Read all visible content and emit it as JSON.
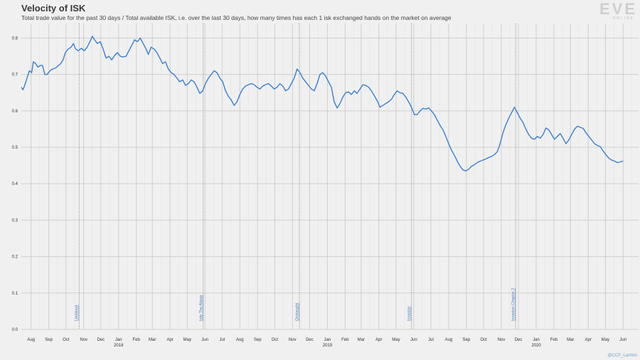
{
  "chart_data": {
    "type": "line",
    "title": "Velocity of ISK",
    "subtitle": "Total trade value for the past 30 days / Total available ISK, i.e. over the last 30 days, how many times has each 1 isk exchanged hands on the market on average",
    "ylim": [
      0,
      0.84
    ],
    "y_ticks": [
      "0.0",
      "0.1",
      "0.2",
      "0.3",
      "0.4",
      "0.5",
      "0.6",
      "0.7",
      "0.8"
    ],
    "x_range": [
      "2017-07-15",
      "2020-06-28"
    ],
    "x_ticks": [
      {
        "label": "Aug",
        "date": "2017-08-01"
      },
      {
        "label": "Sep",
        "date": "2017-09-01"
      },
      {
        "label": "Oct",
        "date": "2017-10-01"
      },
      {
        "label": "Nov",
        "date": "2017-11-01"
      },
      {
        "label": "Dec",
        "date": "2017-12-01"
      },
      {
        "label": "Jan",
        "date": "2018-01-01",
        "year": "2018"
      },
      {
        "label": "Feb",
        "date": "2018-02-01"
      },
      {
        "label": "Mar",
        "date": "2018-03-01"
      },
      {
        "label": "Apr",
        "date": "2018-04-01"
      },
      {
        "label": "May",
        "date": "2018-05-01"
      },
      {
        "label": "Jun",
        "date": "2018-06-01"
      },
      {
        "label": "Jul",
        "date": "2018-07-01"
      },
      {
        "label": "Aug",
        "date": "2018-08-01"
      },
      {
        "label": "Sep",
        "date": "2018-09-01"
      },
      {
        "label": "Oct",
        "date": "2018-10-01"
      },
      {
        "label": "Nov",
        "date": "2018-11-01"
      },
      {
        "label": "Dec",
        "date": "2018-12-01"
      },
      {
        "label": "Jan",
        "date": "2019-01-01",
        "year": "2019"
      },
      {
        "label": "Feb",
        "date": "2019-02-01"
      },
      {
        "label": "Mar",
        "date": "2019-03-01"
      },
      {
        "label": "Apr",
        "date": "2019-04-01"
      },
      {
        "label": "May",
        "date": "2019-05-01"
      },
      {
        "label": "Jun",
        "date": "2019-06-01"
      },
      {
        "label": "Jul",
        "date": "2019-07-01"
      },
      {
        "label": "Aug",
        "date": "2019-08-01"
      },
      {
        "label": "Sep",
        "date": "2019-09-01"
      },
      {
        "label": "Oct",
        "date": "2019-10-01"
      },
      {
        "label": "Nov",
        "date": "2019-11-01"
      },
      {
        "label": "Dec",
        "date": "2019-12-01"
      },
      {
        "label": "Jan",
        "date": "2020-01-01",
        "year": "2020"
      },
      {
        "label": "Feb",
        "date": "2020-02-01"
      },
      {
        "label": "Mar",
        "date": "2020-03-01"
      },
      {
        "label": "Apr",
        "date": "2020-04-01"
      },
      {
        "label": "May",
        "date": "2020-05-01"
      },
      {
        "label": "Jun",
        "date": "2020-06-01"
      }
    ],
    "events": [
      {
        "label": "Lifeblood",
        "date": "2017-10-24"
      },
      {
        "label": "Into The Abyss",
        "date": "2018-05-29"
      },
      {
        "label": "Onslaught",
        "date": "2018-11-13"
      },
      {
        "label": "Invasion",
        "date": "2019-05-28"
      },
      {
        "label": "Invasion Chapter 2",
        "date": "2019-11-26"
      }
    ],
    "series": [
      {
        "color": "#3a7fce",
        "points": [
          [
            "2017-07-15",
            0.665
          ],
          [
            "2017-07-18",
            0.658
          ],
          [
            "2017-07-22",
            0.675
          ],
          [
            "2017-07-26",
            0.695
          ],
          [
            "2017-07-29",
            0.71
          ],
          [
            "2017-08-02",
            0.705
          ],
          [
            "2017-08-05",
            0.735
          ],
          [
            "2017-08-09",
            0.73
          ],
          [
            "2017-08-13",
            0.72
          ],
          [
            "2017-08-17",
            0.725
          ],
          [
            "2017-08-21",
            0.725
          ],
          [
            "2017-08-25",
            0.7
          ],
          [
            "2017-08-29",
            0.7
          ],
          [
            "2017-09-03",
            0.71
          ],
          [
            "2017-09-08",
            0.715
          ],
          [
            "2017-09-13",
            0.718
          ],
          [
            "2017-09-18",
            0.725
          ],
          [
            "2017-09-22",
            0.73
          ],
          [
            "2017-09-26",
            0.74
          ],
          [
            "2017-09-30",
            0.76
          ],
          [
            "2017-10-05",
            0.77
          ],
          [
            "2017-10-10",
            0.775
          ],
          [
            "2017-10-14",
            0.785
          ],
          [
            "2017-10-18",
            0.77
          ],
          [
            "2017-10-23",
            0.765
          ],
          [
            "2017-10-28",
            0.772
          ],
          [
            "2017-11-02",
            0.765
          ],
          [
            "2017-11-07",
            0.775
          ],
          [
            "2017-11-12",
            0.79
          ],
          [
            "2017-11-16",
            0.805
          ],
          [
            "2017-11-20",
            0.795
          ],
          [
            "2017-11-25",
            0.785
          ],
          [
            "2017-11-30",
            0.79
          ],
          [
            "2017-12-05",
            0.77
          ],
          [
            "2017-12-10",
            0.745
          ],
          [
            "2017-12-15",
            0.75
          ],
          [
            "2017-12-20",
            0.74
          ],
          [
            "2017-12-25",
            0.752
          ],
          [
            "2017-12-30",
            0.76
          ],
          [
            "2018-01-04",
            0.75
          ],
          [
            "2018-01-09",
            0.748
          ],
          [
            "2018-01-14",
            0.75
          ],
          [
            "2018-01-19",
            0.765
          ],
          [
            "2018-01-24",
            0.78
          ],
          [
            "2018-01-29",
            0.795
          ],
          [
            "2018-02-03",
            0.79
          ],
          [
            "2018-02-08",
            0.8
          ],
          [
            "2018-02-13",
            0.785
          ],
          [
            "2018-02-18",
            0.77
          ],
          [
            "2018-02-22",
            0.755
          ],
          [
            "2018-02-27",
            0.775
          ],
          [
            "2018-03-04",
            0.77
          ],
          [
            "2018-03-09",
            0.76
          ],
          [
            "2018-03-14",
            0.745
          ],
          [
            "2018-03-19",
            0.73
          ],
          [
            "2018-03-24",
            0.735
          ],
          [
            "2018-03-29",
            0.715
          ],
          [
            "2018-04-03",
            0.705
          ],
          [
            "2018-04-08",
            0.7
          ],
          [
            "2018-04-13",
            0.69
          ],
          [
            "2018-04-18",
            0.68
          ],
          [
            "2018-04-23",
            0.685
          ],
          [
            "2018-04-28",
            0.67
          ],
          [
            "2018-05-03",
            0.675
          ],
          [
            "2018-05-08",
            0.685
          ],
          [
            "2018-05-13",
            0.68
          ],
          [
            "2018-05-18",
            0.665
          ],
          [
            "2018-05-23",
            0.648
          ],
          [
            "2018-05-28",
            0.655
          ],
          [
            "2018-06-02",
            0.675
          ],
          [
            "2018-06-07",
            0.69
          ],
          [
            "2018-06-12",
            0.7
          ],
          [
            "2018-06-17",
            0.71
          ],
          [
            "2018-06-22",
            0.705
          ],
          [
            "2018-06-27",
            0.69
          ],
          [
            "2018-07-02",
            0.68
          ],
          [
            "2018-07-07",
            0.655
          ],
          [
            "2018-07-12",
            0.64
          ],
          [
            "2018-07-17",
            0.63
          ],
          [
            "2018-07-22",
            0.615
          ],
          [
            "2018-07-27",
            0.625
          ],
          [
            "2018-08-01",
            0.645
          ],
          [
            "2018-08-06",
            0.66
          ],
          [
            "2018-08-11",
            0.668
          ],
          [
            "2018-08-16",
            0.672
          ],
          [
            "2018-08-21",
            0.675
          ],
          [
            "2018-08-26",
            0.672
          ],
          [
            "2018-08-31",
            0.665
          ],
          [
            "2018-09-05",
            0.66
          ],
          [
            "2018-09-10",
            0.668
          ],
          [
            "2018-09-15",
            0.672
          ],
          [
            "2018-09-20",
            0.675
          ],
          [
            "2018-09-25",
            0.668
          ],
          [
            "2018-09-30",
            0.66
          ],
          [
            "2018-10-05",
            0.665
          ],
          [
            "2018-10-10",
            0.675
          ],
          [
            "2018-10-15",
            0.668
          ],
          [
            "2018-10-20",
            0.655
          ],
          [
            "2018-10-25",
            0.66
          ],
          [
            "2018-10-30",
            0.675
          ],
          [
            "2018-11-04",
            0.69
          ],
          [
            "2018-11-09",
            0.715
          ],
          [
            "2018-11-14",
            0.705
          ],
          [
            "2018-11-19",
            0.69
          ],
          [
            "2018-11-24",
            0.68
          ],
          [
            "2018-11-29",
            0.67
          ],
          [
            "2018-12-04",
            0.66
          ],
          [
            "2018-12-09",
            0.655
          ],
          [
            "2018-12-14",
            0.675
          ],
          [
            "2018-12-19",
            0.7
          ],
          [
            "2018-12-24",
            0.705
          ],
          [
            "2018-12-29",
            0.695
          ],
          [
            "2019-01-03",
            0.68
          ],
          [
            "2019-01-08",
            0.665
          ],
          [
            "2019-01-13",
            0.625
          ],
          [
            "2019-01-18",
            0.608
          ],
          [
            "2019-01-23",
            0.62
          ],
          [
            "2019-01-28",
            0.638
          ],
          [
            "2019-02-02",
            0.65
          ],
          [
            "2019-02-07",
            0.652
          ],
          [
            "2019-02-12",
            0.645
          ],
          [
            "2019-02-17",
            0.655
          ],
          [
            "2019-02-22",
            0.648
          ],
          [
            "2019-02-27",
            0.66
          ],
          [
            "2019-03-04",
            0.672
          ],
          [
            "2019-03-09",
            0.67
          ],
          [
            "2019-03-14",
            0.665
          ],
          [
            "2019-03-19",
            0.655
          ],
          [
            "2019-03-24",
            0.642
          ],
          [
            "2019-03-29",
            0.628
          ],
          [
            "2019-04-03",
            0.61
          ],
          [
            "2019-04-08",
            0.615
          ],
          [
            "2019-04-13",
            0.62
          ],
          [
            "2019-04-18",
            0.625
          ],
          [
            "2019-04-23",
            0.632
          ],
          [
            "2019-04-28",
            0.645
          ],
          [
            "2019-05-03",
            0.655
          ],
          [
            "2019-05-08",
            0.65
          ],
          [
            "2019-05-13",
            0.648
          ],
          [
            "2019-05-18",
            0.638
          ],
          [
            "2019-05-23",
            0.625
          ],
          [
            "2019-05-28",
            0.61
          ],
          [
            "2019-06-02",
            0.59
          ],
          [
            "2019-06-07",
            0.59
          ],
          [
            "2019-06-12",
            0.6
          ],
          [
            "2019-06-17",
            0.607
          ],
          [
            "2019-06-22",
            0.605
          ],
          [
            "2019-06-27",
            0.608
          ],
          [
            "2019-07-02",
            0.6
          ],
          [
            "2019-07-07",
            0.59
          ],
          [
            "2019-07-12",
            0.575
          ],
          [
            "2019-07-17",
            0.56
          ],
          [
            "2019-07-22",
            0.548
          ],
          [
            "2019-07-27",
            0.53
          ],
          [
            "2019-08-01",
            0.51
          ],
          [
            "2019-08-06",
            0.492
          ],
          [
            "2019-08-11",
            0.478
          ],
          [
            "2019-08-16",
            0.462
          ],
          [
            "2019-08-21",
            0.448
          ],
          [
            "2019-08-26",
            0.438
          ],
          [
            "2019-08-31",
            0.435
          ],
          [
            "2019-09-05",
            0.44
          ],
          [
            "2019-09-10",
            0.448
          ],
          [
            "2019-09-15",
            0.452
          ],
          [
            "2019-09-20",
            0.458
          ],
          [
            "2019-09-25",
            0.462
          ],
          [
            "2019-09-30",
            0.465
          ],
          [
            "2019-10-05",
            0.468
          ],
          [
            "2019-10-10",
            0.472
          ],
          [
            "2019-10-15",
            0.475
          ],
          [
            "2019-10-20",
            0.48
          ],
          [
            "2019-10-25",
            0.488
          ],
          [
            "2019-10-30",
            0.51
          ],
          [
            "2019-11-04",
            0.54
          ],
          [
            "2019-11-09",
            0.562
          ],
          [
            "2019-11-14",
            0.58
          ],
          [
            "2019-11-19",
            0.595
          ],
          [
            "2019-11-24",
            0.61
          ],
          [
            "2019-11-29",
            0.595
          ],
          [
            "2019-12-04",
            0.58
          ],
          [
            "2019-12-09",
            0.568
          ],
          [
            "2019-12-14",
            0.55
          ],
          [
            "2019-12-19",
            0.535
          ],
          [
            "2019-12-24",
            0.525
          ],
          [
            "2019-12-29",
            0.522
          ],
          [
            "2020-01-03",
            0.53
          ],
          [
            "2020-01-08",
            0.525
          ],
          [
            "2020-01-13",
            0.535
          ],
          [
            "2020-01-18",
            0.553
          ],
          [
            "2020-01-23",
            0.548
          ],
          [
            "2020-01-28",
            0.535
          ],
          [
            "2020-02-02",
            0.522
          ],
          [
            "2020-02-07",
            0.53
          ],
          [
            "2020-02-12",
            0.538
          ],
          [
            "2020-02-17",
            0.525
          ],
          [
            "2020-02-22",
            0.51
          ],
          [
            "2020-02-27",
            0.52
          ],
          [
            "2020-03-03",
            0.535
          ],
          [
            "2020-03-08",
            0.55
          ],
          [
            "2020-03-13",
            0.558
          ],
          [
            "2020-03-18",
            0.555
          ],
          [
            "2020-03-23",
            0.552
          ],
          [
            "2020-03-28",
            0.54
          ],
          [
            "2020-04-02",
            0.53
          ],
          [
            "2020-04-07",
            0.52
          ],
          [
            "2020-04-12",
            0.51
          ],
          [
            "2020-04-17",
            0.505
          ],
          [
            "2020-04-22",
            0.502
          ],
          [
            "2020-04-27",
            0.49
          ],
          [
            "2020-05-02",
            0.48
          ],
          [
            "2020-05-07",
            0.47
          ],
          [
            "2020-05-12",
            0.465
          ],
          [
            "2020-05-17",
            0.462
          ],
          [
            "2020-05-22",
            0.458
          ],
          [
            "2020-05-27",
            0.46
          ],
          [
            "2020-06-01",
            0.462
          ]
        ]
      }
    ],
    "grid": true
  },
  "branding": {
    "logo_text": "EVE",
    "logo_subtext": "ONLINE",
    "credit": "@CCP_Larrikin"
  }
}
